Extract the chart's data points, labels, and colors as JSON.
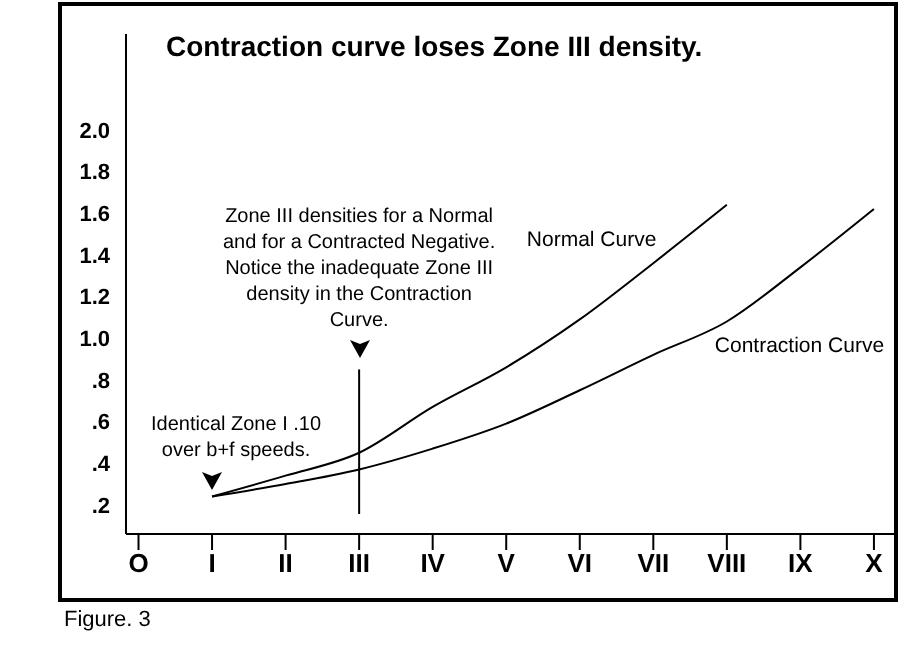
{
  "chart_data": {
    "type": "line",
    "title": "Contraction curve loses Zone III density.",
    "categories": [
      "O",
      "I",
      "II",
      "III",
      "IV",
      "V",
      "VI",
      "VII",
      "VIII",
      "IX",
      "X"
    ],
    "series": [
      {
        "name": "Normal Curve",
        "color": "#000000",
        "values": [
          null,
          0.24,
          0.34,
          0.45,
          0.67,
          0.86,
          1.09,
          1.36,
          1.64,
          null,
          null
        ]
      },
      {
        "name": "Contraction Curve",
        "color": "#000000",
        "values": [
          null,
          0.24,
          0.3,
          0.37,
          0.47,
          0.59,
          0.75,
          0.92,
          1.08,
          1.34,
          1.62
        ]
      }
    ],
    "ylim": [
      0.06,
      2.46
    ],
    "yticks": [
      {
        "value": 0.2,
        "label": ".2"
      },
      {
        "value": 0.4,
        "label": ".4"
      },
      {
        "value": 0.6,
        "label": ".6"
      },
      {
        "value": 0.8,
        "label": ".8"
      },
      "1.0",
      1.2,
      1.4,
      1.6,
      1.8,
      "2.0"
    ],
    "ref_lines": [
      {
        "axis": "x",
        "value": "III",
        "color": "#000000"
      }
    ],
    "annotations": [
      {
        "text": "Zone III densities for a Normal and for a Contracted Negative. Notice the inadequate Zone III density in the Contraction Curve.",
        "x": "III",
        "y": 0.85
      },
      {
        "text": "Identical Zone I .10 over b+f speeds.",
        "x": "I",
        "y": 0.24
      },
      "Figure. 3"
    ],
    "marker": "none",
    "line_style": "solid"
  }
}
